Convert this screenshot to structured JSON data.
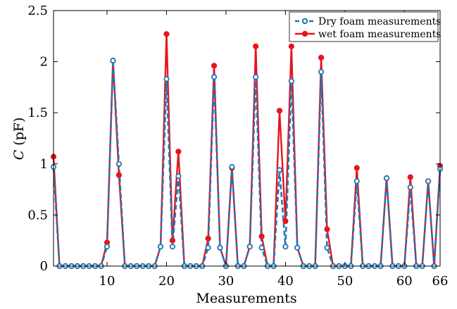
{
  "chart_data": {
    "type": "line",
    "xlabel": "Measurements",
    "ylabel_var": "C",
    "ylabel_unit": "(pF)",
    "xlim": [
      1,
      66
    ],
    "ylim": [
      0,
      2.5
    ],
    "xticks": [
      10,
      20,
      30,
      40,
      50,
      60,
      66
    ],
    "yticks": [
      0,
      0.5,
      1,
      1.5,
      2,
      2.5
    ],
    "ytick_labels": [
      "0",
      "0.5",
      "1",
      "1.5",
      "2",
      "2.5"
    ],
    "grid": false,
    "legend_position": "top-right",
    "x": [
      1,
      2,
      3,
      4,
      5,
      6,
      7,
      8,
      9,
      10,
      11,
      12,
      13,
      14,
      15,
      16,
      17,
      18,
      19,
      20,
      21,
      22,
      23,
      24,
      25,
      26,
      27,
      28,
      29,
      30,
      31,
      32,
      33,
      34,
      35,
      36,
      37,
      38,
      39,
      40,
      41,
      42,
      43,
      44,
      45,
      46,
      47,
      48,
      49,
      50,
      51,
      52,
      53,
      54,
      55,
      56,
      57,
      58,
      59,
      60,
      61,
      62,
      63,
      64,
      65,
      66
    ],
    "series": [
      {
        "name": "Dry foam measurements",
        "color": "#1f77b4",
        "style": "dashed",
        "marker": "open-circle",
        "values": [
          0.97,
          0,
          0,
          0,
          0,
          0,
          0,
          0,
          0,
          0.19,
          2.01,
          1.0,
          0,
          0,
          0,
          0,
          0,
          0,
          0.19,
          1.83,
          0.19,
          0.88,
          0,
          0,
          0,
          0,
          0.18,
          1.85,
          0.18,
          0,
          0.97,
          0,
          0,
          0.19,
          1.85,
          0.18,
          0,
          0,
          0.94,
          0.19,
          1.81,
          0.18,
          0,
          0,
          0,
          1.9,
          0.18,
          0,
          0,
          0,
          0,
          0.83,
          0,
          0,
          0,
          0,
          0.86,
          0,
          0,
          0,
          0.77,
          0,
          0,
          0.83,
          0,
          0.95
        ]
      },
      {
        "name": "wet foam measurements",
        "color": "#e8141c",
        "style": "solid",
        "marker": "filled-circle",
        "values": [
          1.07,
          0,
          0,
          0,
          0,
          0,
          0,
          0,
          0,
          0.23,
          2.01,
          0.89,
          0,
          0,
          0,
          0,
          0,
          0,
          0.19,
          2.27,
          0.25,
          1.12,
          0,
          0,
          0,
          0,
          0.27,
          1.96,
          0.18,
          0,
          0.96,
          0,
          0,
          0.19,
          2.15,
          0.29,
          0,
          0,
          1.52,
          0.44,
          2.15,
          0.18,
          0,
          0,
          0,
          2.04,
          0.36,
          0,
          0,
          0,
          0,
          0.96,
          0,
          0,
          0,
          0,
          0.86,
          0,
          0,
          0,
          0.87,
          0,
          0,
          0.83,
          0,
          0.98
        ]
      }
    ]
  }
}
